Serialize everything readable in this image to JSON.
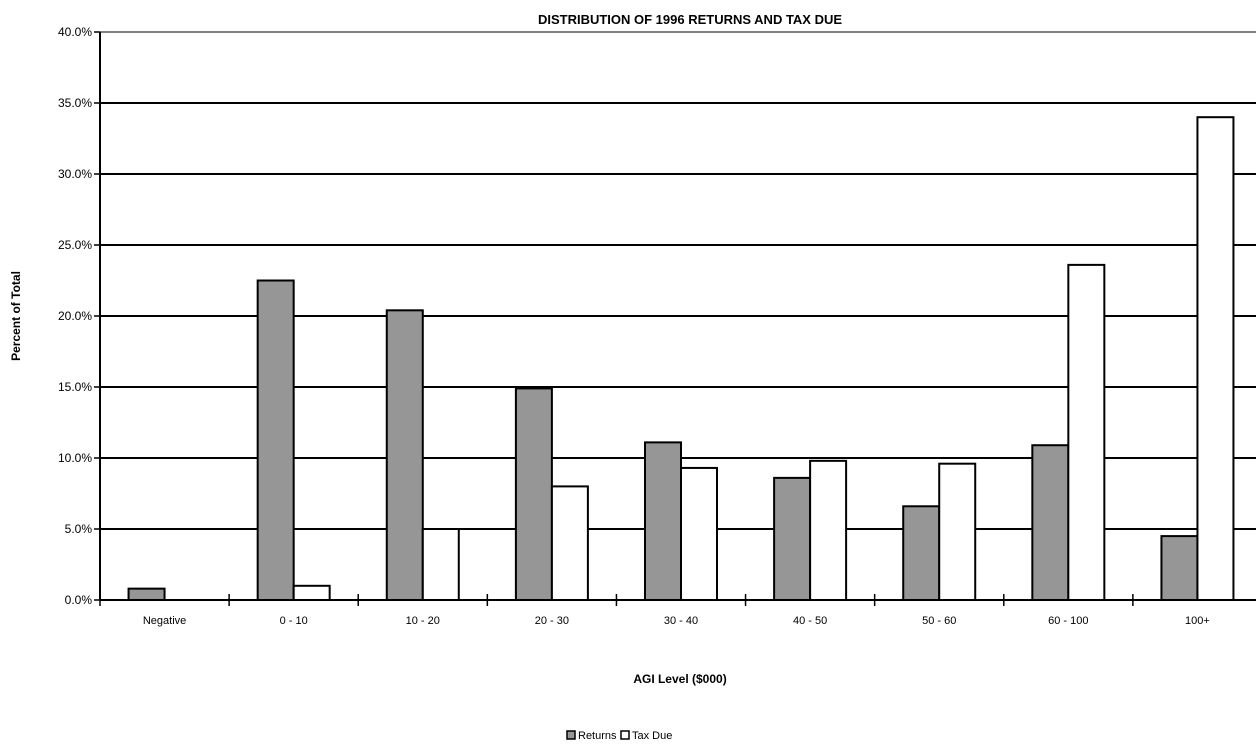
{
  "chart_data": {
    "type": "bar",
    "title": "DISTRIBUTION OF 1996 RETURNS AND TAX DUE",
    "xlabel": "AGI Level ($000)",
    "ylabel": "Percent of Total",
    "ylim": [
      0,
      40
    ],
    "yticks": [
      "0.0%",
      "5.0%",
      "10.0%",
      "15.0%",
      "20.0%",
      "25.0%",
      "30.0%",
      "35.0%",
      "40.0%"
    ],
    "categories": [
      "Negative",
      "0 - 10",
      "10 - 20",
      "20 - 30",
      "30 - 40",
      "40 - 50",
      "50 - 60",
      "60 - 100",
      "100+"
    ],
    "series": [
      {
        "name": "Returns",
        "color": "#969696",
        "values": [
          0.8,
          22.5,
          20.4,
          14.9,
          11.1,
          8.6,
          6.6,
          10.9,
          4.5
        ]
      },
      {
        "name": "Tax Due",
        "color": "#ffffff",
        "values": [
          0.0,
          1.0,
          5.0,
          8.0,
          9.3,
          9.8,
          9.6,
          23.6,
          34.0
        ]
      }
    ],
    "grid": true,
    "legend_position": "bottom-center"
  }
}
